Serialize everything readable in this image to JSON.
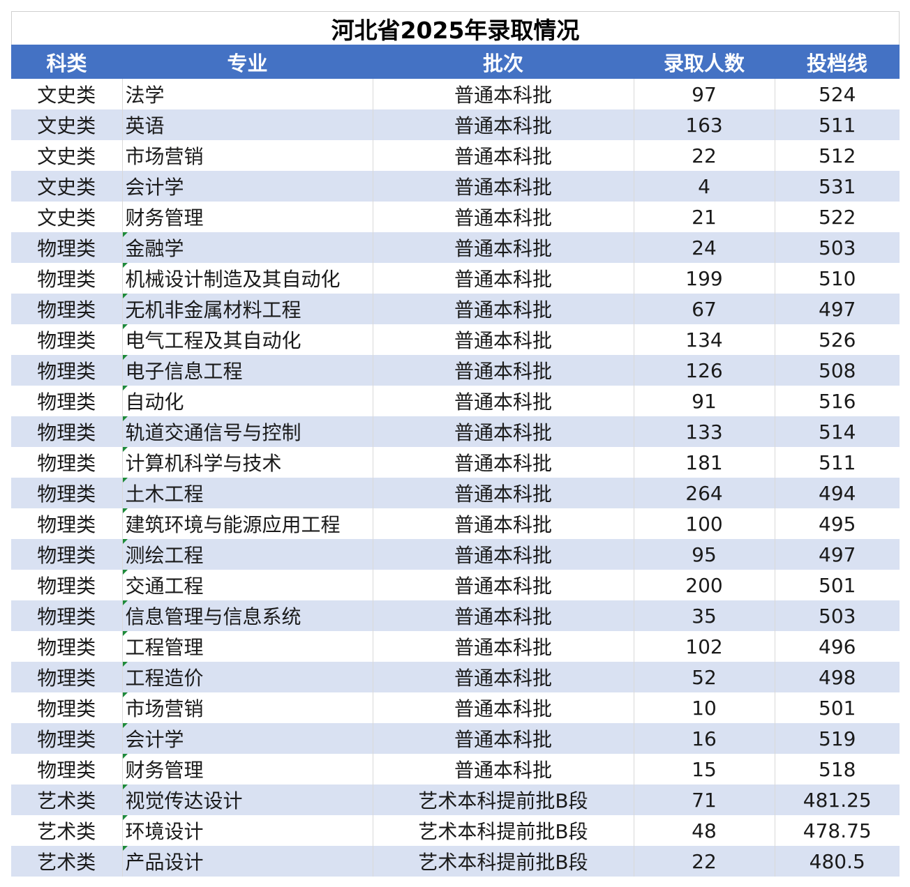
{
  "title": "河北省2025年录取情况",
  "columns": [
    "科类",
    "专业",
    "批次",
    "录取人数",
    "投档线"
  ],
  "rows": [
    [
      "文史类",
      "法学",
      "普通本科批",
      "97",
      "524"
    ],
    [
      "文史类",
      "英语",
      "普通本科批",
      "163",
      "511"
    ],
    [
      "文史类",
      "市场营销",
      "普通本科批",
      "22",
      "512"
    ],
    [
      "文史类",
      "会计学",
      "普通本科批",
      "4",
      "531"
    ],
    [
      "文史类",
      "财务管理",
      "普通本科批",
      "21",
      "522"
    ],
    [
      "物理类",
      "金融学",
      "普通本科批",
      "24",
      "503"
    ],
    [
      "物理类",
      "机械设计制造及其自动化",
      "普通本科批",
      "199",
      "510"
    ],
    [
      "物理类",
      "无机非金属材料工程",
      "普通本科批",
      "67",
      "497"
    ],
    [
      "物理类",
      "电气工程及其自动化",
      "普通本科批",
      "134",
      "526"
    ],
    [
      "物理类",
      "电子信息工程",
      "普通本科批",
      "126",
      "508"
    ],
    [
      "物理类",
      "自动化",
      "普通本科批",
      "91",
      "516"
    ],
    [
      "物理类",
      "轨道交通信号与控制",
      "普通本科批",
      "133",
      "514"
    ],
    [
      "物理类",
      "计算机科学与技术",
      "普通本科批",
      "181",
      "511"
    ],
    [
      "物理类",
      "土木工程",
      "普通本科批",
      "264",
      "494"
    ],
    [
      "物理类",
      "建筑环境与能源应用工程",
      "普通本科批",
      "100",
      "495"
    ],
    [
      "物理类",
      "测绘工程",
      "普通本科批",
      "95",
      "497"
    ],
    [
      "物理类",
      "交通工程",
      "普通本科批",
      "200",
      "501"
    ],
    [
      "物理类",
      "信息管理与信息系统",
      "普通本科批",
      "35",
      "503"
    ],
    [
      "物理类",
      "工程管理",
      "普通本科批",
      "102",
      "496"
    ],
    [
      "物理类",
      "工程造价",
      "普通本科批",
      "52",
      "498"
    ],
    [
      "物理类",
      "市场营销",
      "普通本科批",
      "10",
      "501"
    ],
    [
      "物理类",
      "会计学",
      "普通本科批",
      "16",
      "519"
    ],
    [
      "物理类",
      "财务管理",
      "普通本科批",
      "15",
      "518"
    ],
    [
      "艺术类",
      "视觉传达设计",
      "艺术本科提前批B段",
      "71",
      "481.25"
    ],
    [
      "艺术类",
      "环境设计",
      "艺术本科提前批B段",
      "48",
      "478.75"
    ],
    [
      "艺术类",
      "产品设计",
      "艺术本科提前批B段",
      "22",
      "480.5"
    ]
  ],
  "styles": {
    "header_bg": "#4472c4",
    "header_text": "#ffffff",
    "band_bg": "#d9e1f2",
    "indicator": "#1e8a3a"
  }
}
